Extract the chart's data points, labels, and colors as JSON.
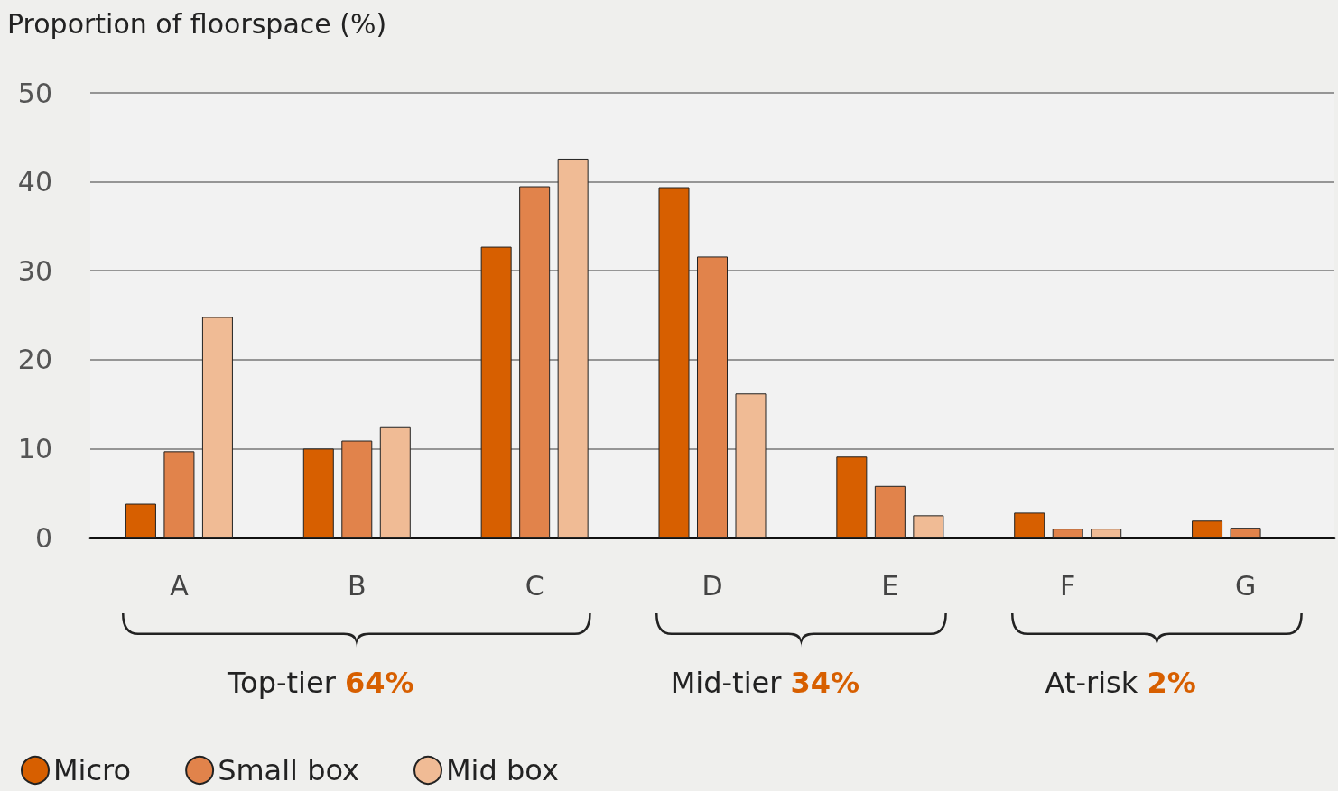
{
  "chart_data": {
    "type": "bar",
    "ylabel": "Proportion of floorspace (%)",
    "categories": [
      "A",
      "B",
      "C",
      "D",
      "E",
      "F",
      "G"
    ],
    "series": [
      {
        "name": "Micro",
        "color": "#d75f00",
        "values": [
          3.8,
          10.0,
          32.7,
          39.4,
          9.1,
          2.8,
          1.9
        ]
      },
      {
        "name": "Small box",
        "color": "#e1834b",
        "values": [
          9.7,
          10.9,
          39.5,
          31.6,
          5.8,
          1.0,
          1.1
        ]
      },
      {
        "name": "Mid box",
        "color": "#f0bb95",
        "values": [
          24.8,
          12.5,
          42.6,
          16.2,
          2.5,
          1.0,
          null
        ]
      }
    ],
    "ylim": [
      0,
      50
    ],
    "yticks": [
      0,
      10,
      20,
      30,
      40,
      50
    ],
    "grid": "y",
    "legend": "bottom left",
    "annotations": [
      "Top-tier 64%",
      "Mid-tier 34%",
      "At-risk 2%"
    ]
  }
}
